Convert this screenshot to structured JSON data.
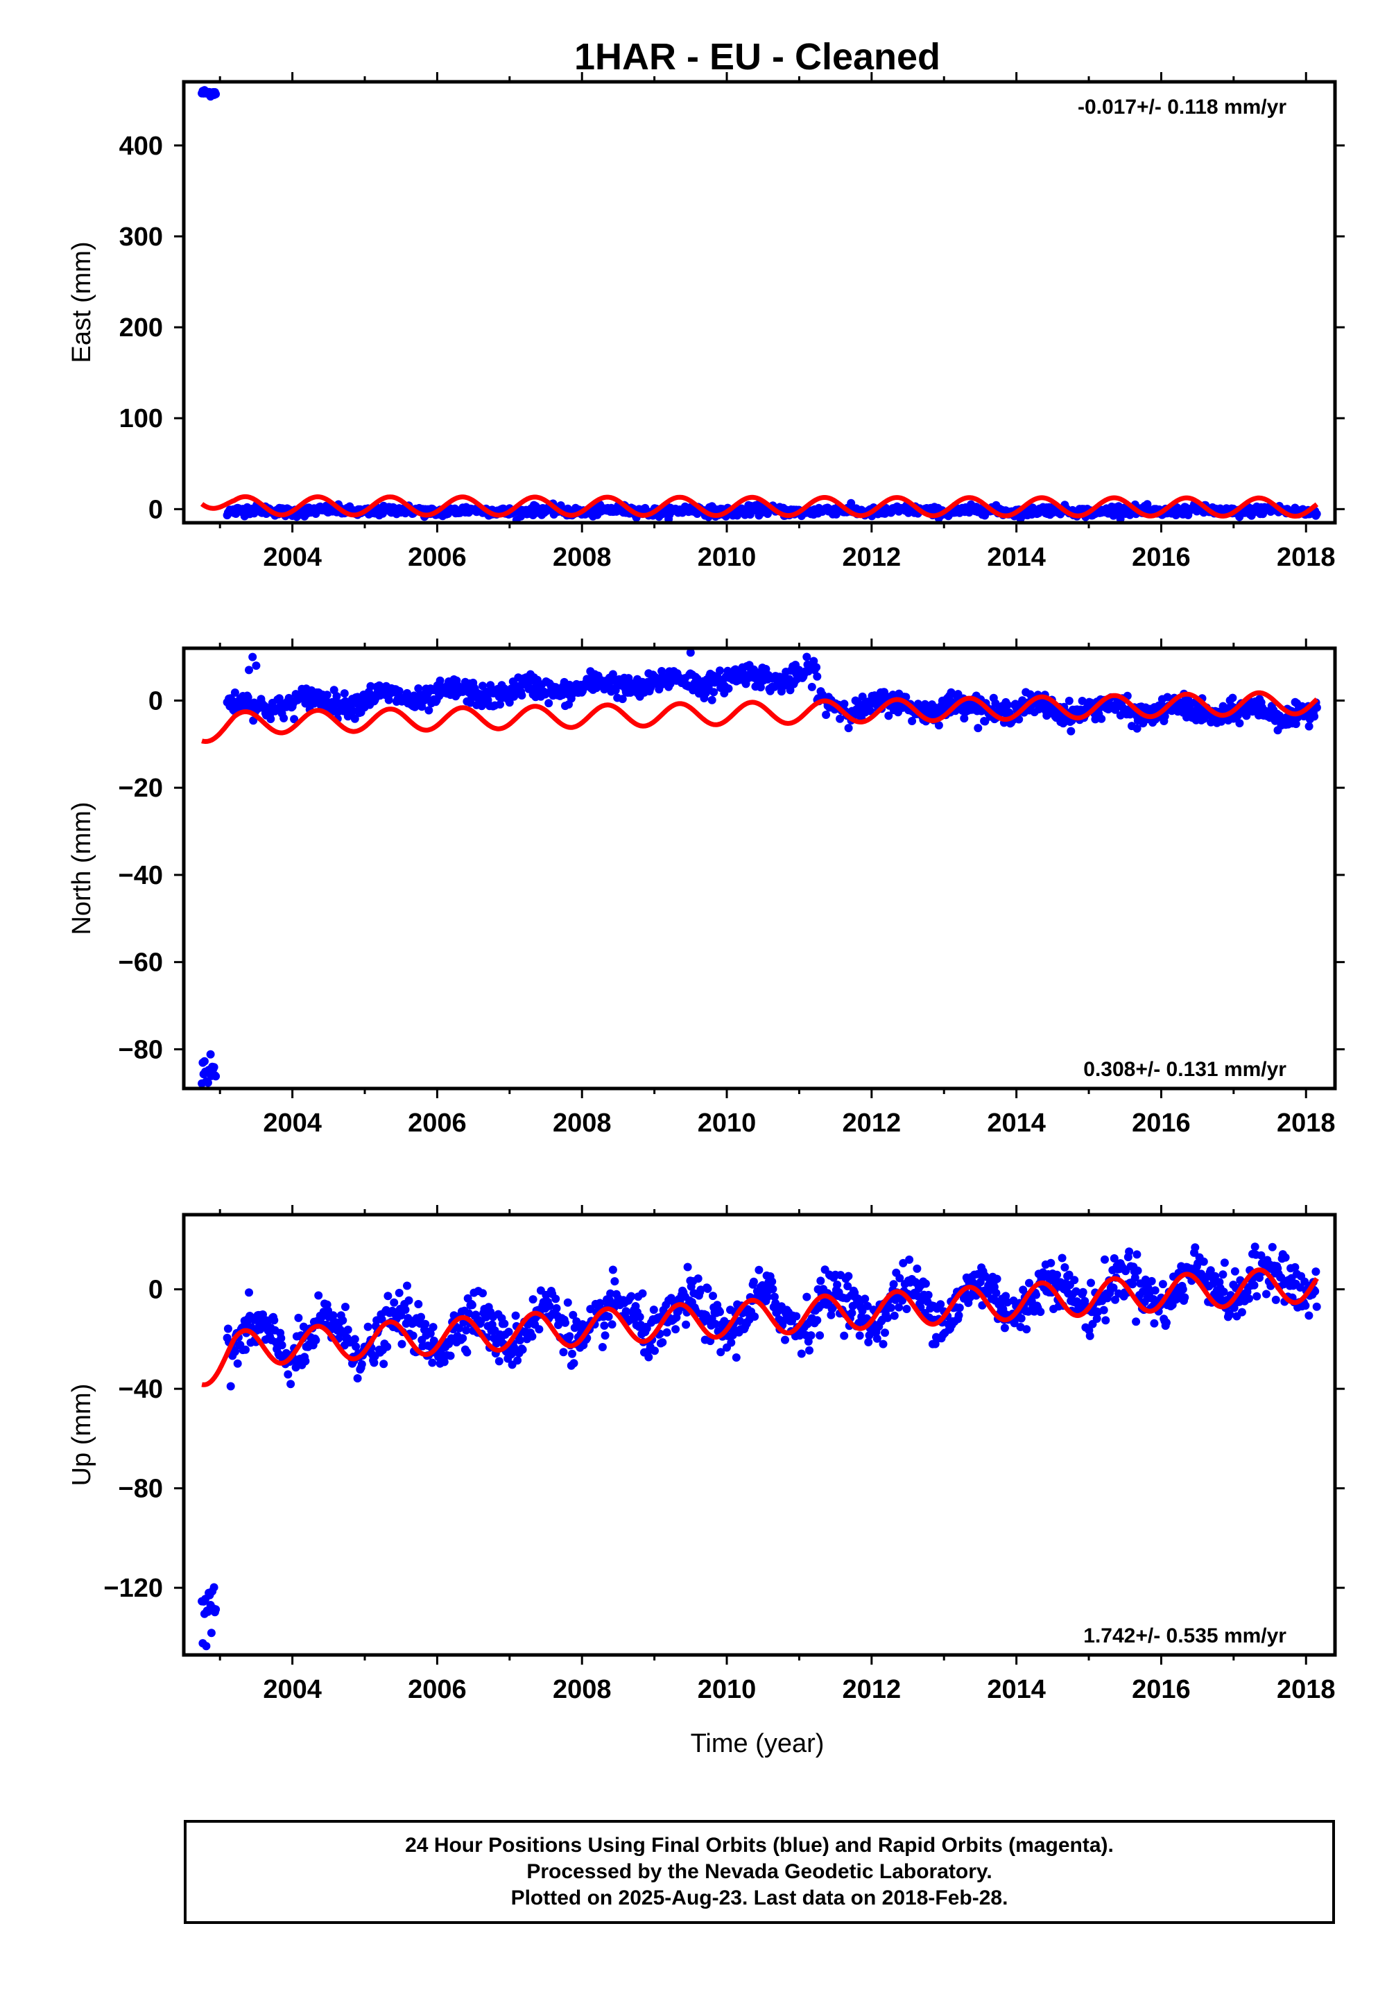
{
  "title": "1HAR  - EU - Cleaned",
  "colors": {
    "data": "#0000ff",
    "model": "#ff0000",
    "frame": "#000000"
  },
  "chart_data": [
    {
      "type": "scatter",
      "panel": "east",
      "ylabel": "East (mm)",
      "xlabel": "",
      "rate": "-0.017+/- 0.118 mm/yr",
      "rate_position": "top-right",
      "xlim": [
        2002.5,
        2018.4
      ],
      "ylim": [
        -15,
        470
      ],
      "xticks": [
        2004,
        2006,
        2008,
        2010,
        2012,
        2014,
        2016,
        2018
      ],
      "xtick_labels": [
        "2004",
        "2006",
        "2008",
        "2010",
        "2012",
        "2014",
        "2016",
        "2018"
      ],
      "yticks": [
        0,
        100,
        200,
        300,
        400
      ],
      "ytick_labels": [
        "0",
        "100",
        "200",
        "300",
        "400"
      ],
      "series": [
        {
          "role": "data",
          "early_cluster": {
            "x_range": [
              2002.75,
              2002.95
            ],
            "y": 458,
            "spread": 2
          },
          "main": {
            "x_range": [
              2003.1,
              2018.15
            ],
            "base": -2,
            "trend": 0,
            "amplitude": 1.5,
            "noise": 2.5
          }
        },
        {
          "role": "model",
          "x_range": [
            2002.75,
            2018.15
          ],
          "base": 3,
          "trend": -0.1,
          "amplitude": 10,
          "early_offset": 10,
          "early_end": 2003.2
        }
      ]
    },
    {
      "type": "scatter",
      "panel": "north",
      "ylabel": "North (mm)",
      "xlabel": "",
      "rate": "0.308+/- 0.131 mm/yr",
      "rate_position": "bottom-right",
      "xlim": [
        2002.5,
        2018.4
      ],
      "ylim": [
        -89,
        12
      ],
      "xticks": [
        2004,
        2006,
        2008,
        2010,
        2012,
        2014,
        2016,
        2018
      ],
      "xtick_labels": [
        "2004",
        "2006",
        "2008",
        "2010",
        "2012",
        "2014",
        "2016",
        "2018"
      ],
      "yticks": [
        0,
        -20,
        -40,
        -60,
        -80
      ],
      "ytick_labels": [
        "0",
        "−20",
        "−40",
        "−60",
        "−80"
      ],
      "series": [
        {
          "role": "data",
          "early_cluster": {
            "x_range": [
              2002.75,
              2002.95
            ],
            "y": -85,
            "spread": 1.8
          },
          "main_segments": [
            {
              "x_range": [
                2003.1,
                2011.25
              ],
              "y_start": -1.5,
              "y_end": 6,
              "amplitude": 1.2,
              "noise": 1.3
            },
            {
              "x_range": [
                2011.25,
                2018.15
              ],
              "y_start": -1,
              "y_end": -3,
              "amplitude": 1.2,
              "noise": 1.3
            }
          ],
          "outliers": [
            {
              "x": 2003.45,
              "y": 10
            },
            {
              "x": 2003.5,
              "y": 8
            },
            {
              "x": 2003.4,
              "y": 7
            },
            {
              "x": 2009.5,
              "y": 11
            }
          ]
        },
        {
          "role": "model",
          "x_range": [
            2002.75,
            2018.15
          ],
          "base": -3,
          "trend": 0.31,
          "amplitude": 2.5,
          "early_offset": -2,
          "early_end": 2003.2
        }
      ]
    },
    {
      "type": "scatter",
      "panel": "up",
      "ylabel": "Up (mm)",
      "xlabel": "Time (year)",
      "rate": "1.742+/- 0.535 mm/yr",
      "rate_position": "bottom-right",
      "xlim": [
        2002.5,
        2018.4
      ],
      "ylim": [
        -147,
        30
      ],
      "xticks": [
        2004,
        2006,
        2008,
        2010,
        2012,
        2014,
        2016,
        2018
      ],
      "xtick_labels": [
        "2004",
        "2006",
        "2008",
        "2010",
        "2012",
        "2014",
        "2016",
        "2018"
      ],
      "yticks": [
        0,
        -40,
        -80,
        -120
      ],
      "ytick_labels": [
        "0",
        "−40",
        "−80",
        "−120"
      ],
      "series": [
        {
          "role": "data",
          "early_cluster": {
            "x_range": [
              2002.75,
              2002.95
            ],
            "y": -125,
            "spread": 7
          },
          "main": {
            "x_range": [
              2003.1,
              2018.15
            ],
            "base": -10,
            "trend": 1.742,
            "amplitude": 7,
            "noise": 5
          }
        },
        {
          "role": "model",
          "x_range": [
            2002.75,
            2018.15
          ],
          "base": -12,
          "trend": 1.742,
          "amplitude": 7,
          "early_offset": -8,
          "early_end": 2003.2
        }
      ]
    }
  ],
  "footer": {
    "line1": "24 Hour Positions Using Final Orbits (blue) and Rapid Orbits (magenta).",
    "line2": "Processed by the Nevada Geodetic Laboratory.",
    "line3": "Plotted on 2025-Aug-23. Last data on 2018-Feb-28."
  }
}
